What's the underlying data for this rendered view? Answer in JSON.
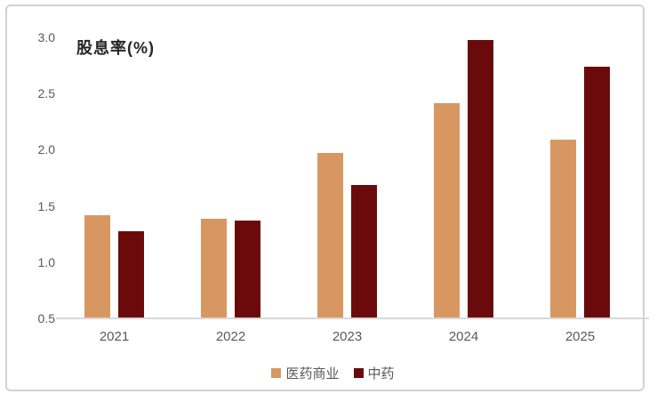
{
  "chart_data": {
    "type": "bar",
    "title": "股息率(%)",
    "categories": [
      "2021",
      "2022",
      "2023",
      "2024",
      "2025"
    ],
    "series": [
      {
        "name": "医药商业",
        "color": "#d89760",
        "values": [
          1.41,
          1.38,
          1.96,
          2.41,
          2.08
        ]
      },
      {
        "name": "中药",
        "color": "#6b0a0a",
        "values": [
          1.27,
          1.36,
          1.68,
          2.97,
          2.73
        ]
      }
    ],
    "ylim": [
      0.5,
      3.0
    ],
    "ytick_step": 0.5,
    "yticks": [
      "3.0",
      "2.5",
      "2.0",
      "1.5",
      "1.0",
      "0.5"
    ],
    "xlabel": "",
    "ylabel": "",
    "grid": false,
    "legend_position": "bottom",
    "colors": {
      "axis_line": "#d9d9d9",
      "tick_text": "#595959",
      "title_text": "#262626",
      "card_border": "#d2d2d2",
      "background": "#ffffff"
    }
  }
}
